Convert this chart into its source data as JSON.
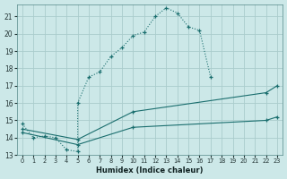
{
  "background_color": "#cce8e8",
  "grid_color": "#aacccc",
  "line_color": "#1a6e6e",
  "xlabel": "Humidex (Indice chaleur)",
  "xlim": [
    -0.5,
    23.5
  ],
  "ylim": [
    13,
    21.7
  ],
  "xticks": [
    0,
    1,
    2,
    3,
    4,
    5,
    6,
    7,
    8,
    9,
    10,
    11,
    12,
    13,
    14,
    15,
    16,
    17,
    18,
    19,
    20,
    21,
    22,
    23
  ],
  "yticks": [
    13,
    14,
    15,
    16,
    17,
    18,
    19,
    20,
    21
  ],
  "curve1_x": [
    0,
    1,
    2,
    3,
    4,
    5,
    5,
    6,
    7,
    8,
    9,
    10,
    11,
    12,
    13,
    14,
    15,
    16,
    17
  ],
  "curve1_y": [
    14.8,
    14.0,
    14.1,
    14.0,
    13.3,
    13.2,
    16.0,
    17.5,
    17.8,
    18.7,
    19.2,
    19.9,
    20.1,
    21.0,
    21.5,
    21.2,
    20.4,
    20.2,
    17.5
  ],
  "curve2_x": [
    0,
    5,
    10,
    22,
    23
  ],
  "curve2_y": [
    14.5,
    13.9,
    15.5,
    16.6,
    17.0
  ],
  "curve3_x": [
    0,
    5,
    10,
    22,
    23
  ],
  "curve3_y": [
    14.3,
    13.6,
    14.6,
    15.0,
    15.2
  ],
  "curve1_linestyle": "dotted",
  "curve2_linestyle": "solid",
  "curve3_linestyle": "solid"
}
